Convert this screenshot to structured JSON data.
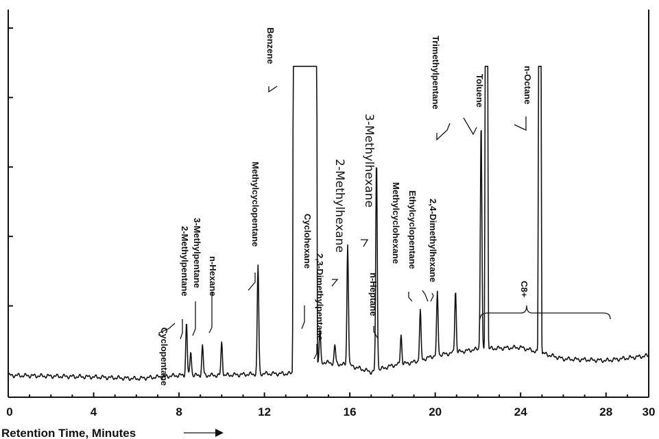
{
  "chart_data": {
    "type": "line",
    "xlabel": "Retention Time, Minutes",
    "xlim": [
      0,
      30
    ],
    "x_ticks": [
      0,
      4,
      8,
      12,
      16,
      20,
      24,
      28
    ],
    "x_tick_labels": [
      "0",
      "4",
      "8",
      "12",
      "16",
      "20",
      "24",
      "28"
    ],
    "last_tick_label": "30",
    "y_ticks": [
      0.2,
      0.4,
      0.6,
      0.8,
      1.0
    ],
    "ylim": [
      0,
      1.05
    ],
    "baseline": [
      [
        0,
        0.0
      ],
      [
        4,
        -0.005
      ],
      [
        6,
        -0.01
      ],
      [
        8,
        0.0
      ],
      [
        10,
        0.0
      ],
      [
        12,
        0.005
      ],
      [
        13.2,
        0.005
      ],
      [
        14.8,
        0.04
      ],
      [
        16,
        0.03
      ],
      [
        17,
        0.01
      ],
      [
        18,
        0.03
      ],
      [
        19,
        0.04
      ],
      [
        20,
        0.06
      ],
      [
        21,
        0.07
      ],
      [
        22,
        0.08
      ],
      [
        24,
        0.085
      ],
      [
        26,
        0.05
      ],
      [
        28,
        0.045
      ],
      [
        30,
        0.06
      ]
    ],
    "peaks": [
      {
        "name": "Cyclopentane",
        "x": 8.35,
        "y": 0.16
      },
      {
        "name": "2-Methylpentane",
        "x": 8.55,
        "y": 0.075
      },
      {
        "name": "3-Methylpentane",
        "x": 9.1,
        "y": 0.09
      },
      {
        "name": "n-Hexane",
        "x": 10.0,
        "y": 0.1
      },
      {
        "name": "Methylcyclopentane",
        "x": 11.7,
        "y": 0.33
      },
      {
        "name": "Benzene",
        "x": 13.9,
        "y": 0.94,
        "saturated": true
      },
      {
        "name": "Cyclohexane",
        "x": 14.6,
        "y": 0.1
      },
      {
        "name": "2,3-Dimethylpentane",
        "x": 15.3,
        "y": 0.055
      },
      {
        "name": "2-Methylhexane",
        "x": 15.9,
        "y": 0.37
      },
      {
        "name": "3-Methylhexane",
        "x": 17.25,
        "y": 0.64
      },
      {
        "name": "n-Heptane",
        "x": 18.4,
        "y": 0.09
      },
      {
        "name": "Methylcyclohexane",
        "x": 19.3,
        "y": 0.15
      },
      {
        "name": "Ethylcyclopentane",
        "x": 20.1,
        "y": 0.19
      },
      {
        "name": "2,4-Dimethylhexane",
        "x": 20.95,
        "y": 0.19
      },
      {
        "name": "Trimethylpentane",
        "x": 22.15,
        "y": 0.69
      },
      {
        "name": "Toluene",
        "x": 22.4,
        "y": 0.94,
        "saturated": true
      },
      {
        "name": "n-Octane",
        "x": 24.9,
        "y": 0.94,
        "saturated": true
      }
    ],
    "annotations": [
      {
        "text": "C8+",
        "x_range": [
          23.5,
          30.2
        ]
      }
    ]
  }
}
